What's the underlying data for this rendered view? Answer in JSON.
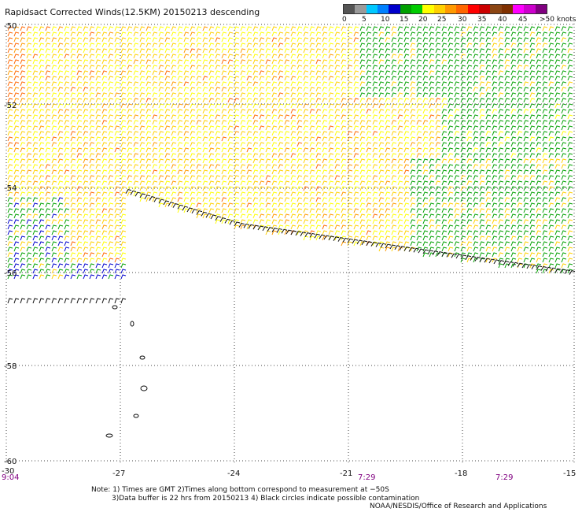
{
  "title": "Rapidsact Corrected Winds(12.5KM) 20150213 descending",
  "colorbar": {
    "colors": [
      "#555555",
      "#9a9a9a",
      "#00c8ff",
      "#0080ff",
      "#0000cc",
      "#00a000",
      "#00cc00",
      "#ffff00",
      "#ffd000",
      "#ff9900",
      "#ff6600",
      "#ff0000",
      "#cc0000",
      "#8b4513",
      "#7f3000",
      "#ff00ff",
      "#cc00cc",
      "#800080"
    ],
    "labels": [
      "0",
      "5",
      "10",
      "15",
      "20",
      "25",
      "30",
      "35",
      "40",
      "45",
      ">50 knots"
    ]
  },
  "axes": {
    "lat_labels": [
      "-50",
      "-52",
      "-54",
      "-56",
      "-58",
      "-60"
    ],
    "lon_labels": [
      "-30",
      "-27",
      "-24",
      "-21",
      "-18",
      "-15"
    ]
  },
  "times": [
    "9:04",
    "7:29",
    "7:29"
  ],
  "notes": {
    "line1": "Note: 1) Times are GMT 2)Times along bottom correspond to measurement at −50S",
    "line2": "3)Data buffer is 22 hrs from 20150213 4) Black circles indicate possible contamination"
  },
  "credit": "NOAA/NESDIS/Office of Research and Applications"
}
